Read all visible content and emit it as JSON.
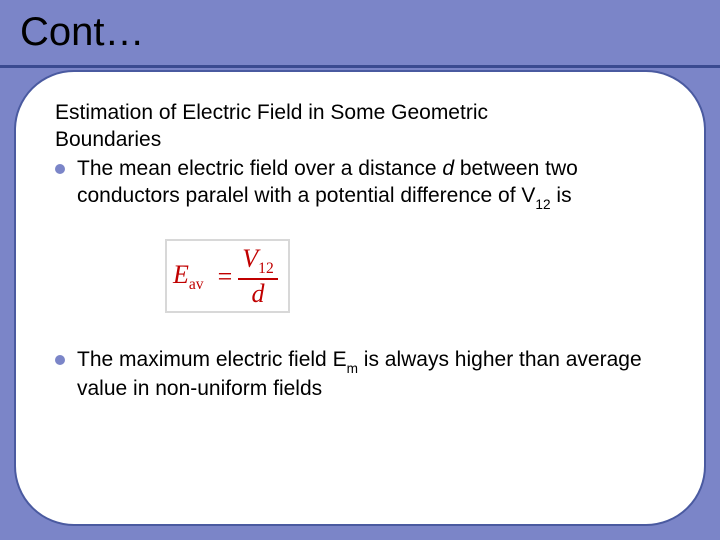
{
  "title": "Cont…",
  "heading_line1": "Estimation of Electric Field in Some Geometric",
  "heading_line2": "Boundaries",
  "bullet1_pre": "The mean electric field over a distance ",
  "bullet1_d": "d",
  "bullet1_mid": " between two conductors paralel with a potential difference of V",
  "bullet1_sub": "12",
  "bullet1_post": " is",
  "formula": {
    "lhs_sym": "E",
    "lhs_sub": "av",
    "eq": "=",
    "num_sym": "V",
    "num_sub": "12",
    "den": "d",
    "color": "#c00000",
    "border_color": "#d8d8d8"
  },
  "bullet2_pre": "The maximum electric field E",
  "bullet2_sub": "m",
  "bullet2_post": " is always higher than average value in non-uniform fields",
  "styling": {
    "slide_bg": "#7b85c8",
    "frame_bg": "#ffffff",
    "frame_border": "#4a5aa0",
    "title_underline": "#3a4a90",
    "bullet_color": "#7b85c8",
    "text_color": "#000000",
    "title_fontsize": 40,
    "body_fontsize": 21,
    "formula_fontsize": 26,
    "frame_radius": 60
  }
}
